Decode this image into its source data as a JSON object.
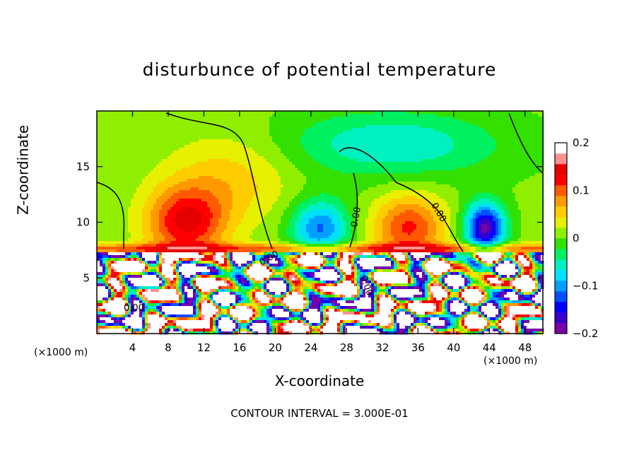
{
  "title": "disturbunce of potential temperature",
  "footnote": "CONTOUR INTERVAL = 3.000E-01",
  "chart_data": {
    "type": "heatmap",
    "title": "disturbunce of potential temperature",
    "xlabel": "X-coordinate",
    "ylabel": "Z-coordinate",
    "x_unit": "(×1000 m)",
    "y_unit": "(×1000 m)",
    "xlim": [
      0,
      50
    ],
    "ylim": [
      0,
      20
    ],
    "x_ticks": [
      4,
      8,
      12,
      16,
      20,
      24,
      28,
      32,
      36,
      40,
      44,
      48
    ],
    "y_ticks": [
      5,
      10,
      15
    ],
    "colorbar": {
      "range": [
        -0.2,
        0.2
      ],
      "tick_values": [
        0.2,
        0.1,
        0,
        -0.1,
        -0.2
      ],
      "tick_labels": [
        "0.2",
        "0.1",
        "0",
        "−0.1",
        "−0.2"
      ],
      "colors": [
        "#7a00a8",
        "#3a00c8",
        "#0000ff",
        "#0050ff",
        "#00a0ff",
        "#00e0ff",
        "#00f0c0",
        "#00f060",
        "#33e000",
        "#90ef00",
        "#e6f000",
        "#ffcc00",
        "#ff9900",
        "#ff5a00",
        "#ff0000",
        "#e60000",
        "#ff9090",
        "#ffffff"
      ]
    },
    "contour_interval": "3.000E-01",
    "contour_labels": [
      "0.00",
      "0.00",
      "0.00",
      "0.00",
      "0.00"
    ],
    "grid": false,
    "legend": "colorbar-right"
  }
}
